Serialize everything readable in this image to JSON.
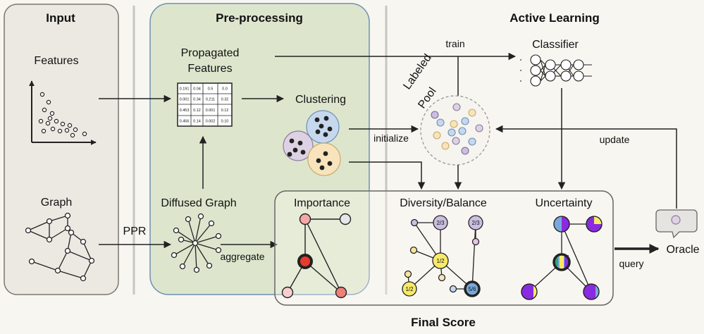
{
  "sections": {
    "input": "Input",
    "preprocessing": "Pre-processing",
    "active_learning": "Active Learning"
  },
  "labels": {
    "features": "Features",
    "graph": "Graph",
    "propagated_features_1": "Propagated",
    "propagated_features_2": "Features",
    "clustering": "Clustering",
    "diffused_graph": "Diffused Graph",
    "ppr": "PPR",
    "aggregate": "aggregate",
    "train": "train",
    "classifier": "Classifier",
    "labeled_pool_1": "Labeled",
    "labeled_pool_2": "Pool",
    "initialize": "initialize",
    "update": "update",
    "importance": "Importance",
    "diversity_balance": "Diversity/Balance",
    "uncertainty": "Uncertainty",
    "query": "query",
    "oracle": "Oracle",
    "final_score": "Final Score"
  },
  "matrix": [
    [
      "0.191",
      "0.04",
      "0.5",
      "0.0"
    ],
    [
      "0.001",
      "0.34",
      "0.211",
      "0.32"
    ],
    [
      "0.453",
      "0.12",
      "0.001",
      "0.12"
    ],
    [
      "0.456",
      "0.14",
      "0.002",
      "0.10"
    ]
  ],
  "diversity_fractions": {
    "a": "2/3",
    "b": "2/3",
    "c": "1/2",
    "d": "1/2",
    "e": "5/6"
  },
  "colors": {
    "input_bg": "#ece9e3",
    "preprocess_bg": "#dde6cd",
    "cluster_blue": "#c6d8ee",
    "cluster_purple": "#ddd2e3",
    "cluster_yellow": "#f7e4bd",
    "pink": "#f4a9a8",
    "red": "#e63b2e",
    "lavender": "#c9bfe0",
    "yellow": "#f7ea6a",
    "blue": "#79a9dc",
    "purple": "#8a2be2"
  }
}
